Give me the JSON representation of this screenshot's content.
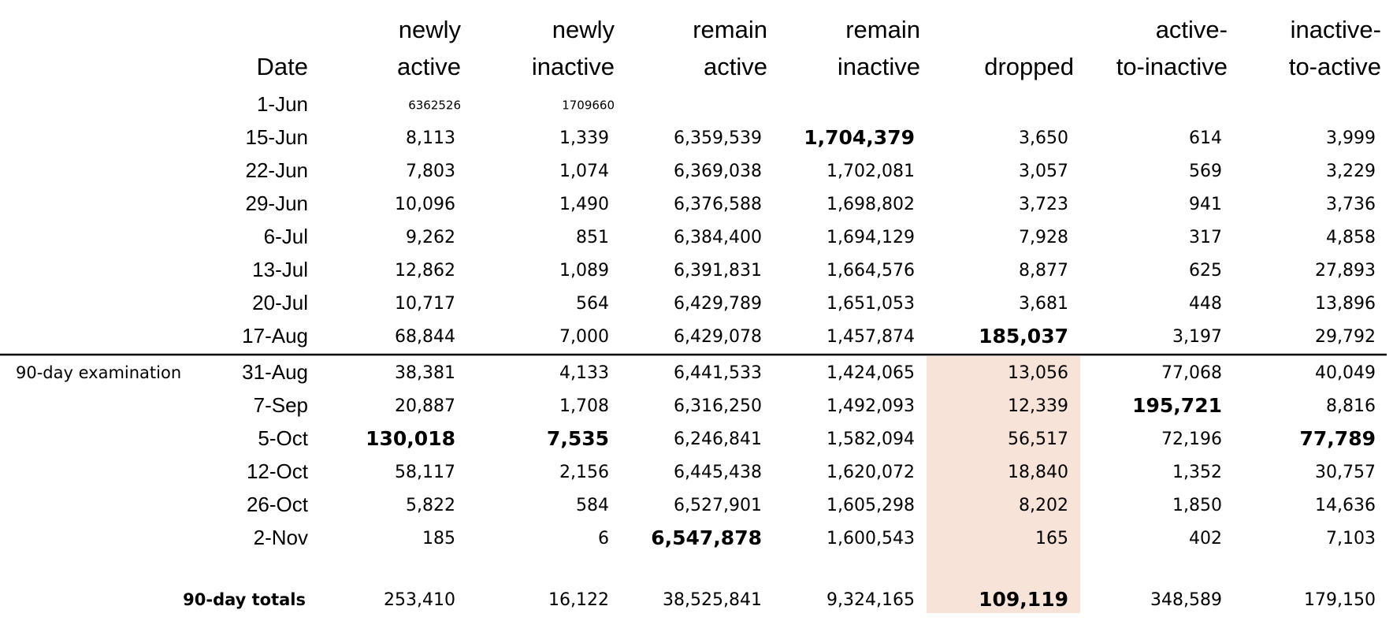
{
  "table": {
    "headers": [
      [
        "Date"
      ],
      [
        "newly",
        "active"
      ],
      [
        "newly",
        "inactive"
      ],
      [
        "remain",
        "active"
      ],
      [
        "remain",
        "inactive"
      ],
      [
        "dropped"
      ],
      [
        "active-",
        "to-inactive"
      ],
      [
        "inactive-",
        "to-active"
      ]
    ],
    "section_label": "90-day examination",
    "rows": [
      {
        "date": "1-Jun",
        "cells": [
          "6362526",
          "1709660"
        ]
      },
      {
        "date": "15-Jun",
        "cells": [
          "8,113",
          "1,339",
          "6,359,539",
          "1,704,379",
          "3,650",
          "614",
          "3,999"
        ]
      },
      {
        "date": "22-Jun",
        "cells": [
          "7,803",
          "1,074",
          "6,369,038",
          "1,702,081",
          "3,057",
          "569",
          "3,229"
        ]
      },
      {
        "date": "29-Jun",
        "cells": [
          "10,096",
          "1,490",
          "6,376,588",
          "1,698,802",
          "3,723",
          "941",
          "3,736"
        ]
      },
      {
        "date": "6-Jul",
        "cells": [
          "9,262",
          "851",
          "6,384,400",
          "1,694,129",
          "7,928",
          "317",
          "4,858"
        ]
      },
      {
        "date": "13-Jul",
        "cells": [
          "12,862",
          "1,089",
          "6,391,831",
          "1,664,576",
          "8,877",
          "625",
          "27,893"
        ]
      },
      {
        "date": "20-Jul",
        "cells": [
          "10,717",
          "564",
          "6,429,789",
          "1,651,053",
          "3,681",
          "448",
          "13,896"
        ]
      },
      {
        "date": "17-Aug",
        "cells": [
          "68,844",
          "7,000",
          "6,429,078",
          "1,457,874",
          "185,037",
          "3,197",
          "29,792"
        ]
      },
      {
        "date": "31-Aug",
        "cells": [
          "38,381",
          "4,133",
          "6,441,533",
          "1,424,065",
          "13,056",
          "77,068",
          "40,049"
        ]
      },
      {
        "date": "7-Sep",
        "cells": [
          "20,887",
          "1,708",
          "6,316,250",
          "1,492,093",
          "12,339",
          "195,721",
          "8,816"
        ]
      },
      {
        "date": "5-Oct",
        "cells": [
          "130,018",
          "7,535",
          "6,246,841",
          "1,582,094",
          "56,517",
          "72,196",
          "77,789"
        ]
      },
      {
        "date": "12-Oct",
        "cells": [
          "58,117",
          "2,156",
          "6,445,438",
          "1,620,072",
          "18,840",
          "1,352",
          "30,757"
        ]
      },
      {
        "date": "26-Oct",
        "cells": [
          "5,822",
          "584",
          "6,527,901",
          "1,605,298",
          "8,202",
          "1,850",
          "14,636"
        ]
      },
      {
        "date": "2-Nov",
        "cells": [
          "185",
          "6",
          "6,547,878",
          "1,600,543",
          "165",
          "402",
          "7,103"
        ]
      }
    ],
    "totals": {
      "label": "90-day totals",
      "cells": [
        "253,410",
        "16,122",
        "38,525,841",
        "9,324,165",
        "109,119",
        "348,589",
        "179,150"
      ]
    }
  }
}
